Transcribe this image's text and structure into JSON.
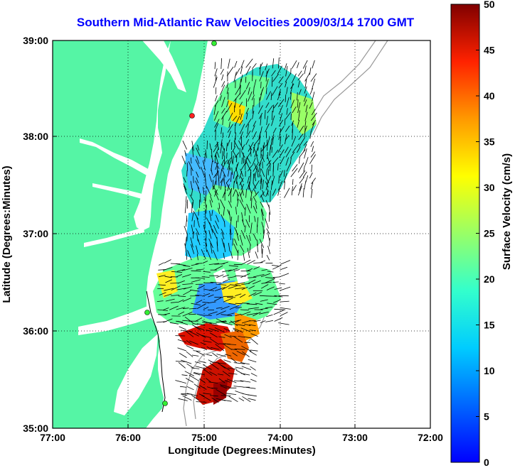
{
  "title": "Southern Mid-Atlantic Raw Velocities 2009/03/14 1700 GMT",
  "x_axis": {
    "label": "Longitude (Degrees:Minutes)",
    "ticks": [
      "77:00",
      "76:00",
      "75:00",
      "74:00",
      "73:00",
      "72:00"
    ],
    "values": [
      -77,
      -76,
      -75,
      -74,
      -73,
      -72
    ]
  },
  "y_axis": {
    "label": "Latitude (Degrees:Minutes)",
    "ticks": [
      "39:00",
      "38:00",
      "37:00",
      "36:00",
      "35:00"
    ],
    "values": [
      39,
      38,
      37,
      36,
      35
    ]
  },
  "colorbar": {
    "label": "Surface Velocity (cm/s)",
    "ticks": [
      "50",
      "45",
      "40",
      "35",
      "30",
      "25",
      "20",
      "15",
      "10",
      "5",
      "0"
    ],
    "min": 0,
    "max": 50
  },
  "colors": {
    "land": "#55f5a5",
    "ocean": "#ffffff",
    "title": "#0000ff",
    "arrows": "#000000",
    "station_red": "#ff2020",
    "station_green": "#33ee33"
  }
}
